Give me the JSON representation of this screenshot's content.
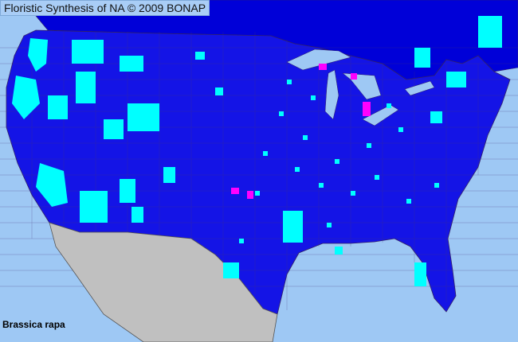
{
  "header": {
    "title": "Floristic Synthesis of NA © 2009 BONAP"
  },
  "map": {
    "species": "Brassica rapa",
    "colors": {
      "ocean": "#9ec8f4",
      "canada": "#0000d8",
      "usa": "#1414e6",
      "present": "#00ffff",
      "noxious_or_rare": "#ff00ff",
      "mexico": "#c0c0c0",
      "county_lines": "#443366"
    }
  }
}
